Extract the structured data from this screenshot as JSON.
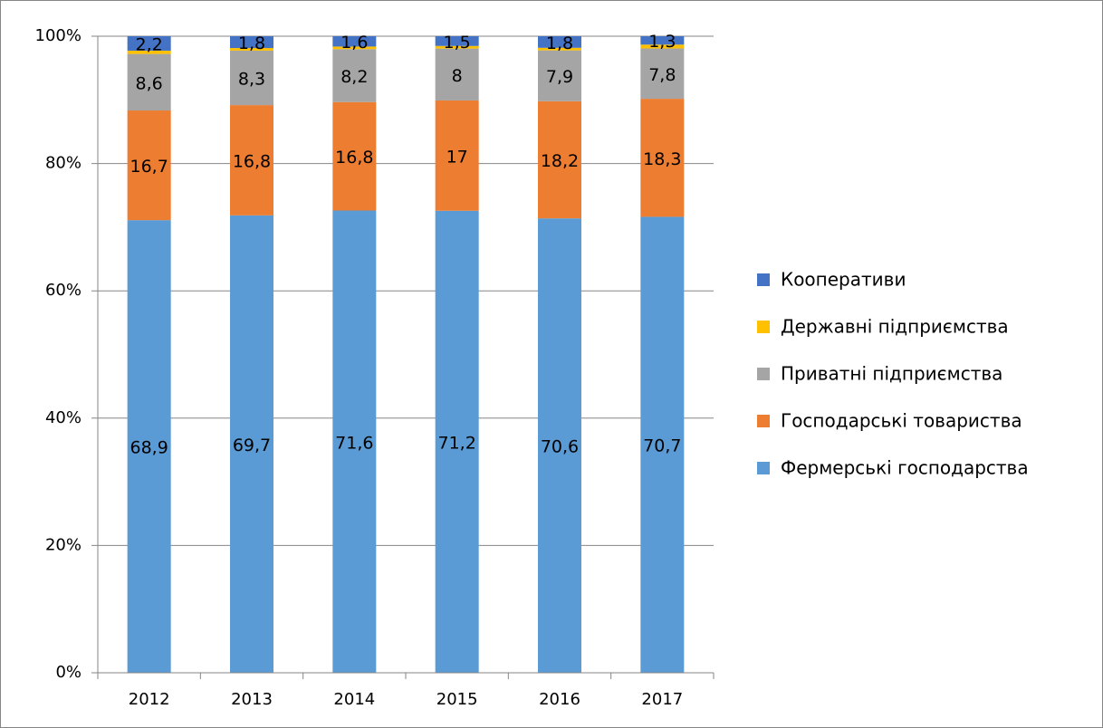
{
  "chart_data": {
    "type": "bar",
    "stack": "percent",
    "categories": [
      "2012",
      "2013",
      "2014",
      "2015",
      "2016",
      "2017"
    ],
    "series": [
      {
        "name": "Фермерські господарства",
        "color": "#5b9bd5",
        "values": [
          68.9,
          69.7,
          71.6,
          71.2,
          70.6,
          70.7
        ],
        "value_labels": [
          "68,9",
          "69,7",
          "71,6",
          "71,2",
          "70,6",
          "70,7"
        ]
      },
      {
        "name": "Господарські товариства",
        "color": "#ed7d31",
        "values": [
          16.7,
          16.8,
          16.8,
          17,
          18.2,
          18.3
        ],
        "value_labels": [
          "16,7",
          "16,8",
          "16,8",
          "17",
          "18,2",
          "18,3"
        ]
      },
      {
        "name": "Приватні підприємства",
        "color": "#a5a5a5",
        "values": [
          8.6,
          8.3,
          8.2,
          8,
          7.9,
          7.8
        ],
        "value_labels": [
          "8,6",
          "8,3",
          "8,2",
          "8",
          "7,9",
          "7,8"
        ]
      },
      {
        "name": "Державні підприємства",
        "color": "#ffc000",
        "values": [
          0.5,
          0.4,
          0.4,
          0.4,
          0.4,
          0.6
        ]
      },
      {
        "name": "Кооперативи",
        "color": "#4472c4",
        "values": [
          2.2,
          1.8,
          1.6,
          1.5,
          1.8,
          1.3
        ],
        "value_labels": [
          "2,2",
          "1,8",
          "1,6",
          "1,5",
          "1,8",
          "1,3"
        ]
      }
    ],
    "ylim": [
      0,
      100
    ],
    "yticks": [
      {
        "value": 0,
        "label": "0%"
      },
      {
        "value": 20,
        "label": "20%"
      },
      {
        "value": 40,
        "label": "40%"
      },
      {
        "value": 60,
        "label": "60%"
      },
      {
        "value": 80,
        "label": "80%"
      },
      {
        "value": 100,
        "label": "100%"
      }
    ],
    "grid": true,
    "legend": "right"
  }
}
